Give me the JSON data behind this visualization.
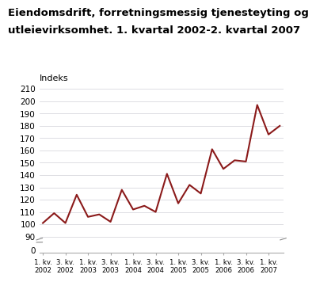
{
  "title_line1": "Eiendomsdrift, forretningsmessig tjenesteyting og",
  "title_line2": "utleievirksomhet. 1. kvartal 2002-2. kvartal 2007",
  "ylabel": "Indeks",
  "line_color": "#8B1A1A",
  "background_color": "#ffffff",
  "grid_color": "#d0d0d8",
  "values": [
    101,
    109,
    101,
    124,
    106,
    108,
    102,
    128,
    112,
    115,
    110,
    141,
    117,
    132,
    125,
    161,
    145,
    152,
    151,
    197,
    173,
    180
  ],
  "x_tick_labels": [
    "1. kv.\n2002",
    "3. kv.\n2002",
    "1. kv.\n2003",
    "3. kv.\n2003",
    "1. kv.\n2004",
    "3. kv.\n2004",
    "1. kv.\n2005",
    "3. kv.\n2005",
    "1. kv.\n2006",
    "3. kv.\n2006",
    "1. kv.\n2007"
  ],
  "x_tick_positions": [
    0,
    2,
    4,
    6,
    8,
    10,
    12,
    14,
    16,
    18,
    20
  ],
  "ylim_main": [
    88,
    212
  ],
  "yticks_main": [
    90,
    100,
    110,
    120,
    130,
    140,
    150,
    160,
    170,
    180,
    190,
    200,
    210
  ],
  "ytick_labels_main": [
    "90",
    "100",
    "110",
    "120",
    "130",
    "140",
    "150",
    "160",
    "170",
    "180",
    "190",
    "200",
    "210"
  ],
  "line_width": 1.5,
  "title_fontsize": 9.5,
  "tick_fontsize": 7.5
}
